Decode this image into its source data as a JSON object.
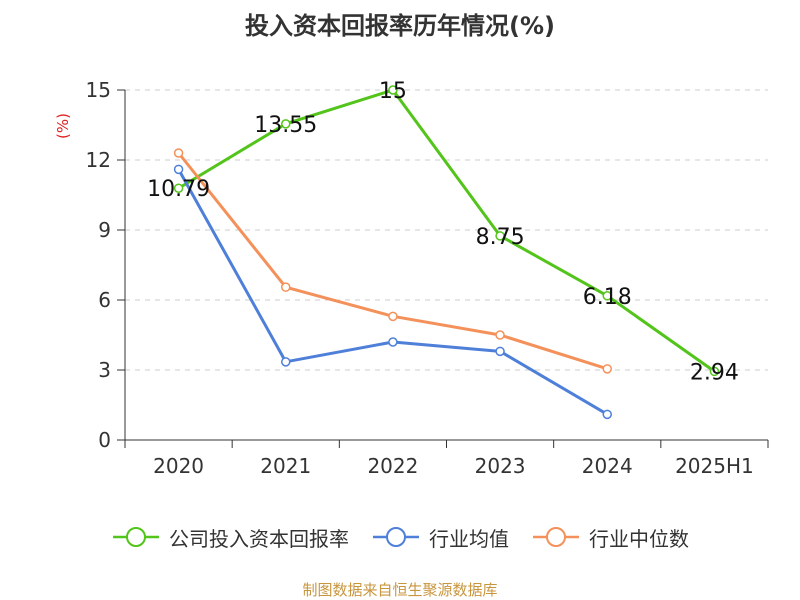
{
  "chart_data": {
    "type": "line",
    "title": "投入资本回报率历年情况(%)",
    "ylabel": "(%)",
    "categories": [
      "2020",
      "2021",
      "2022",
      "2023",
      "2024",
      "2025H1"
    ],
    "ylim": [
      0,
      15
    ],
    "yticks": [
      0,
      3,
      6,
      9,
      12,
      15
    ],
    "grid": true,
    "legend_position": "bottom",
    "series": [
      {
        "name": "公司投入资本回报率",
        "color": "#52c41a",
        "values": [
          10.79,
          13.55,
          15,
          8.75,
          6.18,
          2.94
        ],
        "labels": [
          "10.79",
          "13.55",
          "15",
          "8.75",
          "6.18",
          "2.94"
        ]
      },
      {
        "name": "行业均值",
        "color": "#4e7fd9",
        "values": [
          11.6,
          3.35,
          4.2,
          3.8,
          1.1,
          null
        ]
      },
      {
        "name": "行业中位数",
        "color": "#f4915a",
        "values": [
          12.3,
          6.55,
          5.3,
          4.5,
          3.05,
          null
        ]
      }
    ]
  },
  "footer": {
    "source": "制图数据来自恒生聚源数据库"
  }
}
